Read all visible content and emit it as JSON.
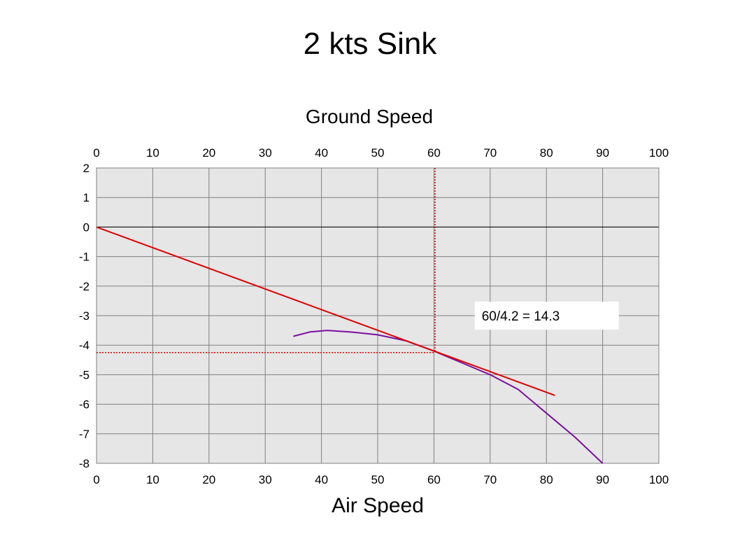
{
  "slide": {
    "title": "2 kts Sink"
  },
  "chart_data": {
    "type": "line",
    "title": "Ground Speed",
    "xlabel": "Air Speed",
    "ylabel": "",
    "xlim": [
      0,
      100
    ],
    "ylim": [
      -8,
      2
    ],
    "x_ticks": [
      0,
      10,
      20,
      30,
      40,
      50,
      60,
      70,
      80,
      90,
      100
    ],
    "y_ticks": [
      2,
      1,
      0,
      -1,
      -2,
      -3,
      -4,
      -5,
      -6,
      -7,
      -8
    ],
    "grid": true,
    "legend": "none",
    "colors": {
      "plot_bg": "#e6e6e6",
      "grid": "#808080",
      "tangent": "#e00000",
      "polar": "#7a0fa0",
      "guide": "#e00000"
    },
    "series": [
      {
        "color": "#7a0fa0",
        "points": [
          [
            35,
            -3.7
          ],
          [
            38,
            -3.55
          ],
          [
            41,
            -3.5
          ],
          [
            45,
            -3.55
          ],
          [
            50,
            -3.65
          ],
          [
            55,
            -3.85
          ],
          [
            60,
            -4.2
          ],
          [
            65,
            -4.6
          ],
          [
            70,
            -5.0
          ],
          [
            75,
            -5.5
          ],
          [
            80,
            -6.3
          ],
          [
            85,
            -7.1
          ],
          [
            90,
            -8.0
          ]
        ]
      },
      {
        "color": "#e00000",
        "points": [
          [
            0,
            0
          ],
          [
            81.5,
            -5.7
          ]
        ]
      }
    ],
    "guides": [
      {
        "orientation": "vertical",
        "value": 60.2,
        "from": -4.2,
        "to": 2
      },
      {
        "orientation": "horizontal",
        "value": -4.25,
        "from": 0,
        "to": 60.2
      }
    ],
    "annotations": [
      {
        "text": "60/4.2 = 14.3",
        "x": 68.5,
        "y": -3
      }
    ]
  }
}
